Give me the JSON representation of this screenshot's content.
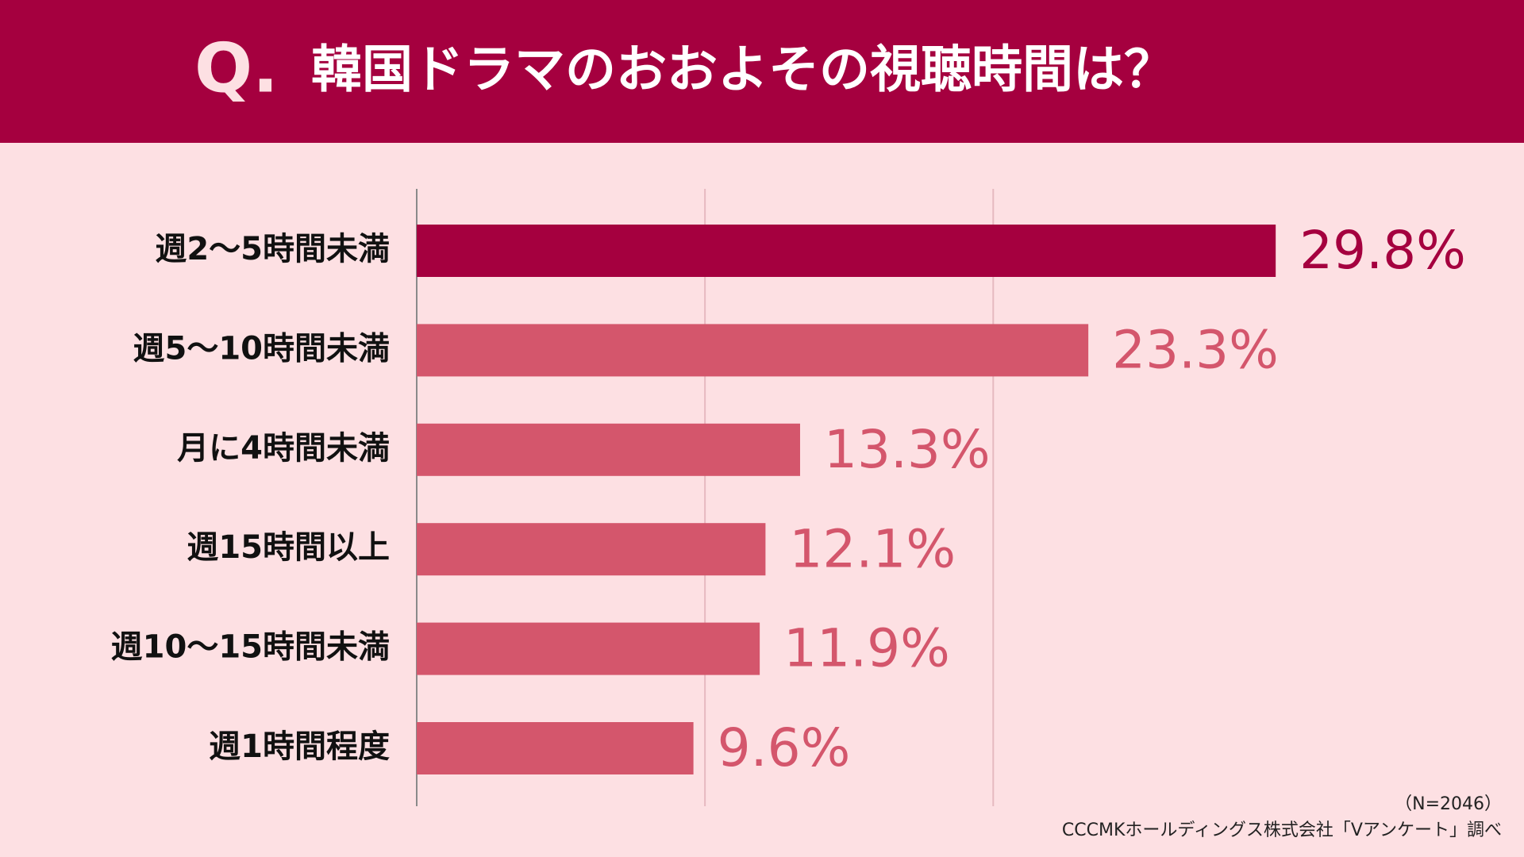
{
  "chart_data": {
    "type": "bar",
    "orientation": "horizontal",
    "title_prefix": "Q.",
    "title": "韓国ドラマのおおよその視聴時間は？",
    "categories": [
      "週2～5時間未満",
      "週5～10時間未満",
      "月に4時間未満",
      "週15時間以上",
      "週10～15時間未満",
      "週1時間程度"
    ],
    "values": [
      29.8,
      23.3,
      13.3,
      12.1,
      11.9,
      9.6
    ],
    "value_labels": [
      "29.8%",
      "23.3%",
      "13.3%",
      "12.1%",
      "11.9%",
      "9.6%"
    ],
    "colors": [
      "#a5003f",
      "#d4566c",
      "#d4566c",
      "#d4566c",
      "#d4566c",
      "#d4566c"
    ],
    "xlim": [
      0,
      35
    ],
    "xticks": [
      0,
      10,
      20
    ],
    "grid": true,
    "sample_note": "（N=2046）",
    "source": "CCCMKホールディングス株式会社「Vアンケート」調べ"
  }
}
